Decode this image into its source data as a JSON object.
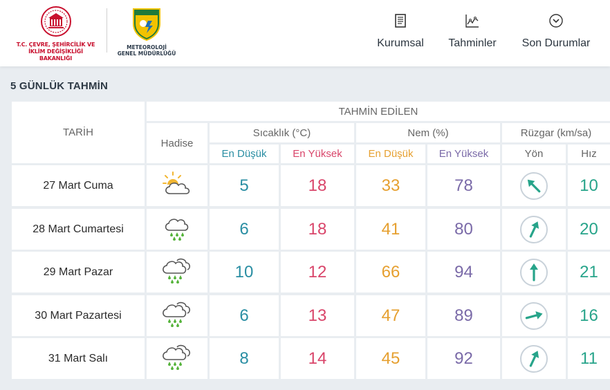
{
  "header": {
    "ministry_line1": "T.C. ÇEVRE, ŞEHİRCİLİK VE",
    "ministry_line2": "İKLİM DEĞİŞİKLİĞİ BAKANLIĞI",
    "mgm_line1": "METEOROLOJİ",
    "mgm_line2": "GENEL MÜDÜRLÜĞÜ",
    "nav": [
      {
        "label": "Kurumsal",
        "icon": "document-icon"
      },
      {
        "label": "Tahminler",
        "icon": "chart-icon"
      },
      {
        "label": "Son Durumlar",
        "icon": "chevron-circle-icon"
      }
    ]
  },
  "forecast": {
    "title": "5 GÜNLÜK TAHMİN",
    "headers": {
      "date": "TARİH",
      "predicted": "TAHMİN EDİLEN",
      "event": "Hadise",
      "temperature": "Sıcaklık (°C)",
      "humidity": "Nem (%)",
      "wind": "Rüzgar (km/sa)",
      "min": "En Düşük",
      "max": "En Yüksek",
      "direction": "Yön",
      "speed": "Hız"
    },
    "rows": [
      {
        "date": "27 Mart Cuma",
        "weather_icon": "partly-cloudy-icon",
        "temp_min": "5",
        "temp_max": "18",
        "hum_min": "33",
        "hum_max": "78",
        "wind_deg": 315,
        "wind_speed": "10"
      },
      {
        "date": "28 Mart Cumartesi",
        "weather_icon": "rain-icon",
        "temp_min": "6",
        "temp_max": "18",
        "hum_min": "41",
        "hum_max": "80",
        "wind_deg": 25,
        "wind_speed": "20"
      },
      {
        "date": "29 Mart Pazar",
        "weather_icon": "heavy-rain-icon",
        "temp_min": "10",
        "temp_max": "12",
        "hum_min": "66",
        "hum_max": "94",
        "wind_deg": 0,
        "wind_speed": "21"
      },
      {
        "date": "30 Mart Pazartesi",
        "weather_icon": "heavy-rain-icon",
        "temp_min": "6",
        "temp_max": "13",
        "hum_min": "47",
        "hum_max": "89",
        "wind_deg": 75,
        "wind_speed": "16"
      },
      {
        "date": "31 Mart Salı",
        "weather_icon": "heavy-rain-icon",
        "temp_min": "8",
        "temp_max": "14",
        "hum_min": "45",
        "hum_max": "92",
        "wind_deg": 25,
        "wind_speed": "11"
      }
    ]
  },
  "colors": {
    "temp_min": "#2a8ea3",
    "temp_max": "#d9456a",
    "hum_min": "#e6a030",
    "hum_max": "#7a6aa8",
    "wind": "#27a48a"
  }
}
